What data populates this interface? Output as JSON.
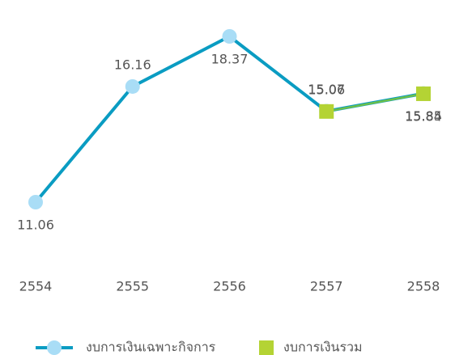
{
  "chart_data": {
    "type": "line",
    "categories": [
      "2554",
      "2555",
      "2556",
      "2557",
      "2558"
    ],
    "series": [
      {
        "name": "งบการเงินเฉพาะกิจการ",
        "color": "#0a9cc2",
        "marker_color": "#a9ddf6",
        "marker": "circle",
        "values": [
          11.06,
          16.16,
          18.37,
          15.07,
          15.85
        ]
      },
      {
        "name": "งบการเงินรวม",
        "color": "#6cc04a",
        "marker_color": "#b4d334",
        "marker": "square",
        "values": [
          null,
          null,
          null,
          15.06,
          15.84
        ]
      }
    ],
    "grid": false,
    "legend": "bottom"
  }
}
